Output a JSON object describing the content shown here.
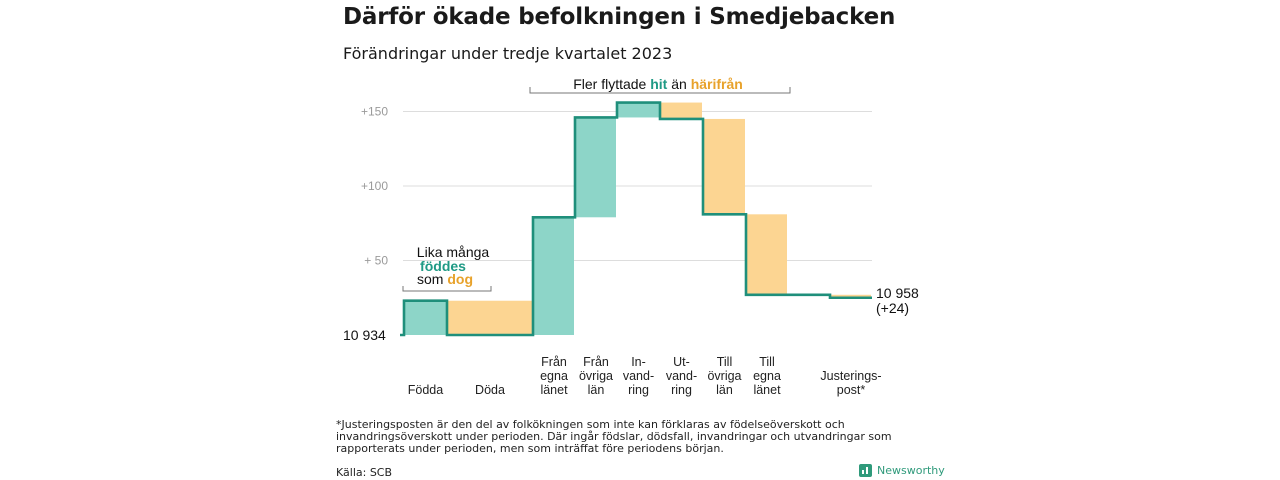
{
  "title": "Därför ökade befolkningen i Smedjebacken",
  "subtitle": "Förändringar under tredje kvartalet 2023",
  "colors": {
    "increase": "#8dd5c8",
    "decrease": "#fcd592",
    "line": "#1f8f7b",
    "hit": "#1f9a85",
    "harifran": "#e8a22b"
  },
  "chart_data": {
    "type": "waterfall",
    "baseline": 10934,
    "baseline_label": "10  934",
    "y_ticks": [
      {
        "value": 50,
        "label": "+  50"
      },
      {
        "value": 100,
        "label": "+100"
      },
      {
        "value": 150,
        "label": "+150"
      }
    ],
    "steps": [
      {
        "label": [
          "Födda"
        ],
        "change": 23,
        "kind": "increase"
      },
      {
        "label": [
          "Döda"
        ],
        "change": -23,
        "kind": "decrease"
      },
      {
        "label": [
          "Från",
          "egna",
          "länet"
        ],
        "change": 79,
        "kind": "increase"
      },
      {
        "label": [
          "Från",
          "övriga",
          "län"
        ],
        "change": 67,
        "kind": "increase"
      },
      {
        "label": [
          "In-",
          "vand-",
          "ring"
        ],
        "change": 10,
        "kind": "increase"
      },
      {
        "label": [
          "Ut-",
          "vand-",
          "ring"
        ],
        "change": -11,
        "kind": "decrease"
      },
      {
        "label": [
          "Till",
          "övriga",
          "län"
        ],
        "change": -64,
        "kind": "decrease"
      },
      {
        "label": [
          "Till",
          "egna",
          "länet"
        ],
        "change": -54,
        "kind": "decrease"
      },
      {
        "label": [],
        "change": 0,
        "kind": "increase"
      },
      {
        "label": [
          "Justerings-",
          "post*"
        ],
        "change": -2,
        "kind": "decrease"
      }
    ],
    "end_value": "10 958",
    "end_change": "(+24)"
  },
  "annotations": {
    "births": {
      "line1": "Lika många",
      "line2_word": "föddes",
      "line3_prefix": "som ",
      "line3_word": "dog"
    },
    "migration": {
      "prefix": "Fler flyttade ",
      "hit": "hit",
      "middle": "  än ",
      "harifran": "härifrån"
    }
  },
  "footnote": "*Justeringsposten är den del av folkökningen som inte kan förklaras av födelseöverskott och invandringsöverskott under perioden. Där ingår födslar, dödsfall, invandringar och utvandringar som rapporterats under perioden, men som inträffat före periodens början.",
  "source": "Källa: SCB",
  "brand": "Newsworthy"
}
